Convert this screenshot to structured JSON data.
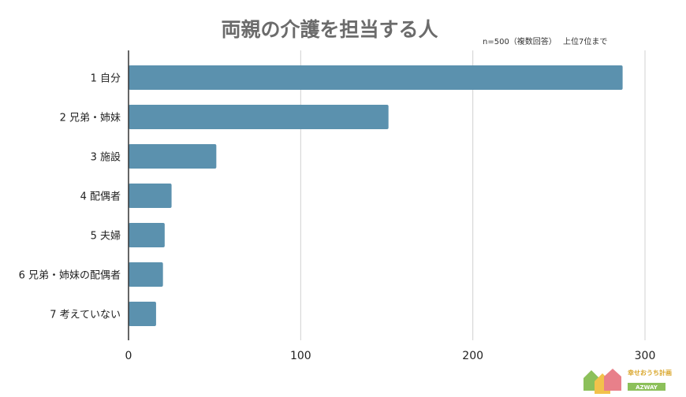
{
  "chart_data": {
    "type": "bar",
    "orientation": "horizontal",
    "title": "両親の介護を担当する人",
    "note": "n=500（複数回答）　 上位7位まで",
    "categories": [
      "1 自分",
      "2 兄弟・姉妹",
      "3 施設",
      "4 配偶者",
      "5 夫婦",
      "6 兄弟・姉妹の配偶者",
      "7 考えていない"
    ],
    "values": [
      287,
      151,
      51,
      25,
      21,
      20,
      16
    ],
    "xlim": [
      0,
      300
    ],
    "xticks": [
      "0",
      "100",
      "200",
      "300"
    ],
    "xlabel": "",
    "ylabel": "",
    "grid": "vertical",
    "colors": {
      "bar": "#5b91ae",
      "grid": "#d0d0d0",
      "axis": "#333333"
    }
  },
  "logo": {
    "text": "幸せおうち計画",
    "brand": "AZWAY"
  }
}
